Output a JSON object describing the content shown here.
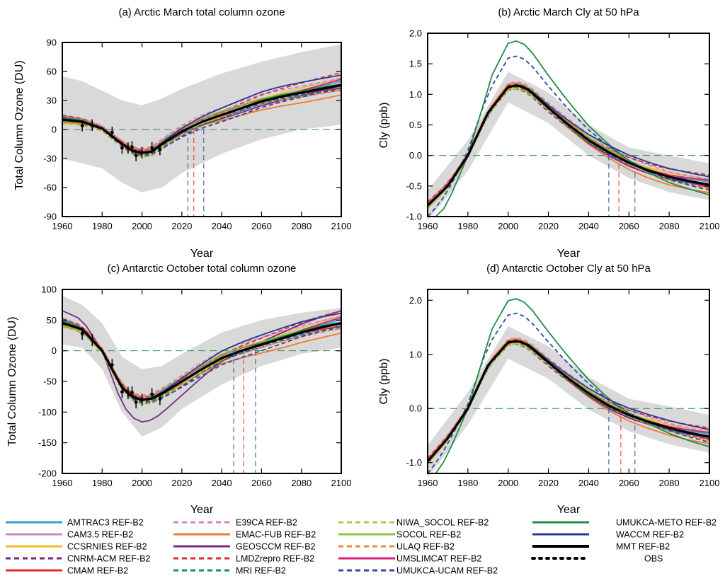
{
  "chart_data": [
    {
      "type": "line",
      "title": "(a)  Arctic March total column ozone",
      "xlabel": "Year",
      "ylabel": "Total Column Ozone (DU)",
      "xlim": [
        1960,
        2100
      ],
      "ylim": [
        -90,
        90
      ],
      "xticks": [
        "1960",
        "1980",
        "2000",
        "2020",
        "2040",
        "2060",
        "2080",
        "2100"
      ],
      "yticks": [
        "90",
        "60",
        "30",
        "0",
        "-30",
        "-60",
        "-90"
      ],
      "ytick_values": [
        90,
        60,
        30,
        0,
        -30,
        -60,
        -90
      ],
      "mmt": {
        "x": [
          1960,
          1970,
          1980,
          1990,
          1995,
          2000,
          2005,
          2010,
          2020,
          2030,
          2040,
          2050,
          2060,
          2070,
          2080,
          2090,
          2100
        ],
        "y": [
          10,
          8,
          1,
          -15,
          -22,
          -24,
          -23,
          -15,
          -2,
          8,
          15,
          22,
          29,
          34,
          38,
          42,
          46
        ]
      },
      "envelope": {
        "x": [
          1960,
          1970,
          1980,
          1990,
          2000,
          2010,
          2020,
          2040,
          2060,
          2080,
          2100
        ],
        "upper": [
          55,
          50,
          40,
          30,
          25,
          32,
          42,
          58,
          70,
          80,
          88
        ],
        "lower": [
          -30,
          -35,
          -40,
          -55,
          -65,
          -60,
          -45,
          -25,
          -10,
          0,
          5
        ]
      },
      "return_dates": [
        2023,
        2026,
        2031
      ]
    },
    {
      "type": "line",
      "title": "(b)  Arctic March Cly at 50 hPa",
      "xlabel": "Year",
      "ylabel": "Cly (ppb)",
      "xlim": [
        1960,
        2100
      ],
      "ylim": [
        -1.0,
        2.0
      ],
      "xticks": [
        "1960",
        "1980",
        "2000",
        "2020",
        "2040",
        "2060",
        "2080",
        "2100"
      ],
      "yticks": [
        "2.0",
        "1.5",
        "1.0",
        "0.5",
        "0.0",
        "-0.5",
        "-1.0"
      ],
      "ytick_values": [
        2.0,
        1.5,
        1.0,
        0.5,
        0.0,
        -0.5,
        -1.0
      ],
      "mmt": {
        "x": [
          1960,
          1970,
          1980,
          1990,
          2000,
          2005,
          2010,
          2020,
          2030,
          2040,
          2050,
          2060,
          2070,
          2080,
          2090,
          2100
        ],
        "y": [
          -0.82,
          -0.5,
          0.0,
          0.7,
          1.12,
          1.15,
          1.08,
          0.78,
          0.5,
          0.25,
          0.05,
          -0.12,
          -0.25,
          -0.35,
          -0.42,
          -0.48
        ]
      },
      "return_dates": [
        2050,
        2055,
        2063
      ]
    },
    {
      "type": "line",
      "title": "(c)  Antarctic October total column ozone",
      "xlabel": "Year",
      "ylabel": "Total Column Ozone (DU)",
      "xlim": [
        1960,
        2100
      ],
      "ylim": [
        -200,
        100
      ],
      "xticks": [
        "1960",
        "1980",
        "2000",
        "2020",
        "2040",
        "2060",
        "2080",
        "2100"
      ],
      "yticks": [
        "100",
        "50",
        "0",
        "-50",
        "-100",
        "-150",
        "-200"
      ],
      "ytick_values": [
        100,
        50,
        0,
        -50,
        -100,
        -150,
        -200
      ],
      "mmt": {
        "x": [
          1960,
          1970,
          1980,
          1990,
          1995,
          2000,
          2005,
          2010,
          2020,
          2030,
          2040,
          2050,
          2060,
          2070,
          2080,
          2090,
          2100
        ],
        "y": [
          45,
          35,
          0,
          -60,
          -75,
          -80,
          -78,
          -70,
          -50,
          -30,
          -12,
          0,
          10,
          20,
          30,
          38,
          45
        ]
      },
      "envelope": {
        "x": [
          1960,
          1970,
          1980,
          1990,
          2000,
          2010,
          2020,
          2040,
          2060,
          2080,
          2100
        ],
        "upper": [
          90,
          75,
          45,
          -10,
          -30,
          -25,
          -5,
          30,
          50,
          62,
          70
        ],
        "lower": [
          10,
          5,
          -30,
          -100,
          -140,
          -125,
          -95,
          -55,
          -25,
          -5,
          5
        ]
      },
      "return_dates": [
        2046,
        2051,
        2057
      ]
    },
    {
      "type": "line",
      "title": "(d)  Antarctic October Cly at 50 hPa",
      "xlabel": "Year",
      "ylabel": "Cly (ppb)",
      "xlim": [
        1960,
        2100
      ],
      "ylim": [
        -1.2,
        2.2
      ],
      "xticks": [
        "1960",
        "1980",
        "2000",
        "2020",
        "2040",
        "2060",
        "2080",
        "2100"
      ],
      "yticks": [
        "2.0",
        "1.0",
        "0.0",
        "-1.0"
      ],
      "ytick_values": [
        2.0,
        1.0,
        0.0,
        -1.0
      ],
      "mmt": {
        "x": [
          1960,
          1970,
          1980,
          1990,
          2000,
          2005,
          2010,
          2020,
          2030,
          2040,
          2050,
          2060,
          2070,
          2080,
          2090,
          2100
        ],
        "y": [
          -0.98,
          -0.55,
          0.0,
          0.8,
          1.22,
          1.25,
          1.17,
          0.85,
          0.55,
          0.28,
          0.05,
          -0.12,
          -0.25,
          -0.36,
          -0.45,
          -0.52
        ]
      },
      "return_dates": [
        2050,
        2056,
        2063
      ]
    }
  ],
  "legend": [
    {
      "label": "AMTRAC3 REF-B2",
      "color": "#2aa7cc",
      "dash": "solid"
    },
    {
      "label": "CAM3.5 REF-B2",
      "color": "#c38ac6",
      "dash": "solid"
    },
    {
      "label": "CCSRNIES REF-B2",
      "color": "#f2bb24",
      "dash": "solid"
    },
    {
      "label": "CNRM-ACM REF-B2",
      "color": "#6b2a77",
      "dash": "dashed"
    },
    {
      "label": "CMAM REF-B2",
      "color": "#e8262c",
      "dash": "solid"
    },
    {
      "label": "E39CA REF-B2",
      "color": "#cf84cf",
      "dash": "dashed"
    },
    {
      "label": "EMAC-FUB REF-B2",
      "color": "#f37a2a",
      "dash": "solid"
    },
    {
      "label": "GEOSCCM REF-B2",
      "color": "#7a2a86",
      "dash": "solid"
    },
    {
      "label": "LMDZrepro REF-B2",
      "color": "#e8262c",
      "dash": "dashed"
    },
    {
      "label": "MRI REF-B2",
      "color": "#1e8c58",
      "dash": "dashed"
    },
    {
      "label": "NIWA_SOCOL REF-B2",
      "color": "#a4cf4d",
      "dash": "dashed"
    },
    {
      "label": "SOCOL REF-B2",
      "color": "#8dc43f",
      "dash": "solid"
    },
    {
      "label": "ULAQ REF-B2",
      "color": "#f3883a",
      "dash": "dashed"
    },
    {
      "label": "UMSLIMCAT REF-B2",
      "color": "#e1197c",
      "dash": "solid"
    },
    {
      "label": "UMUKCA-UCAM REF-B2",
      "color": "#2c4aa0",
      "dash": "dashed"
    },
    {
      "label": "UMUKCA-METO REF-B2",
      "color": "#1e8c45",
      "dash": "solid"
    },
    {
      "label": "WACCM REF-B2",
      "color": "#253a94",
      "dash": "solid"
    },
    {
      "label": "MMT REF-B2",
      "color": "#000000",
      "dash": "solid"
    },
    {
      "label": "OBS",
      "color": "#000000",
      "dash": "dotted"
    }
  ]
}
